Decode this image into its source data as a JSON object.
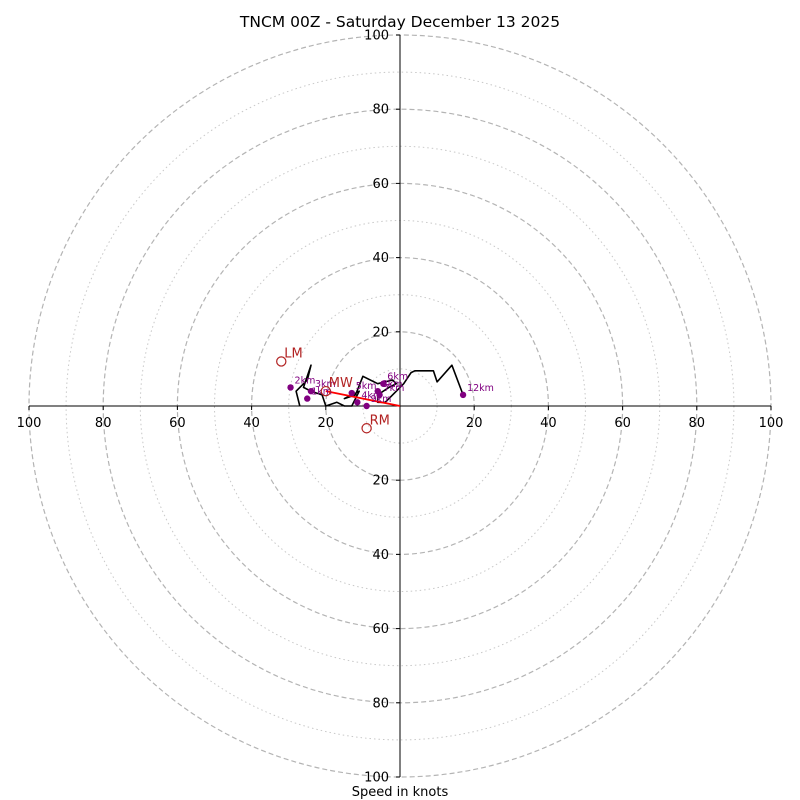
{
  "chart_data": {
    "type": "hodograph",
    "title": "TNCM 00Z - Saturday December 13 2025",
    "xlabel": "Speed in knots",
    "range": [
      -100,
      100
    ],
    "major_rings": [
      20,
      40,
      60,
      80,
      100
    ],
    "minor_rings": [
      10,
      30,
      50,
      70,
      90
    ],
    "tick_labels": {
      "top": [
        "100",
        "80",
        "60",
        "40",
        "20"
      ],
      "bottom": [
        "20",
        "40",
        "60",
        "80",
        "100"
      ],
      "left": [
        "100",
        "80",
        "60",
        "40",
        "20"
      ],
      "right": [
        "20",
        "40",
        "60",
        "80",
        "100"
      ]
    },
    "trace_color": "#000000",
    "trace": [
      [
        -27,
        0
      ],
      [
        -28,
        4
      ],
      [
        -25,
        7
      ],
      [
        -24,
        11
      ],
      [
        -26,
        5
      ],
      [
        -24,
        4
      ],
      [
        -21,
        3
      ],
      [
        -20,
        0
      ],
      [
        -17,
        1
      ],
      [
        -15,
        0
      ],
      [
        -13,
        0
      ],
      [
        -11,
        4
      ],
      [
        -15,
        2
      ],
      [
        -12,
        3
      ],
      [
        -10,
        8
      ],
      [
        -6,
        6
      ],
      [
        -2,
        7
      ],
      [
        -1,
        6
      ],
      [
        -3,
        5
      ],
      [
        -6,
        3
      ],
      [
        -6,
        1
      ],
      [
        -4,
        1
      ],
      [
        -1,
        4
      ],
      [
        1,
        6
      ],
      [
        3,
        9
      ],
      [
        4,
        9.5
      ],
      [
        9,
        9.5
      ],
      [
        10,
        6.5
      ],
      [
        14,
        11
      ],
      [
        17,
        3
      ]
    ],
    "height_points": [
      {
        "label": "2km",
        "u": -29.5,
        "v": 5
      },
      {
        "label": "3km",
        "u": -24,
        "v": 4
      },
      {
        "label": "1km",
        "u": -25,
        "v": 2
      },
      {
        "label": "5km",
        "u": -13,
        "v": 3.5
      },
      {
        "label": "4km",
        "u": -11.5,
        "v": 1
      },
      {
        "label": "6km",
        "u": -4.5,
        "v": 6
      },
      {
        "label": "8km",
        "u": -6,
        "v": 4
      },
      {
        "label": "7km",
        "u": -5.5,
        "v": 3
      },
      {
        "label": "9km",
        "u": -9,
        "v": 0
      },
      {
        "label": "12km",
        "u": 17,
        "v": 3
      }
    ],
    "height_point_color": "#800080",
    "motion_points": [
      {
        "label": "LM",
        "u": -32,
        "v": 12
      },
      {
        "label": "MW",
        "u": -20,
        "v": 4
      },
      {
        "label": "RM",
        "u": -9,
        "v": -6
      }
    ],
    "motion_color": "#b22222",
    "shear_vector": {
      "from": [
        -20,
        4
      ],
      "to": [
        0,
        0
      ],
      "color": "#ff0000"
    }
  }
}
